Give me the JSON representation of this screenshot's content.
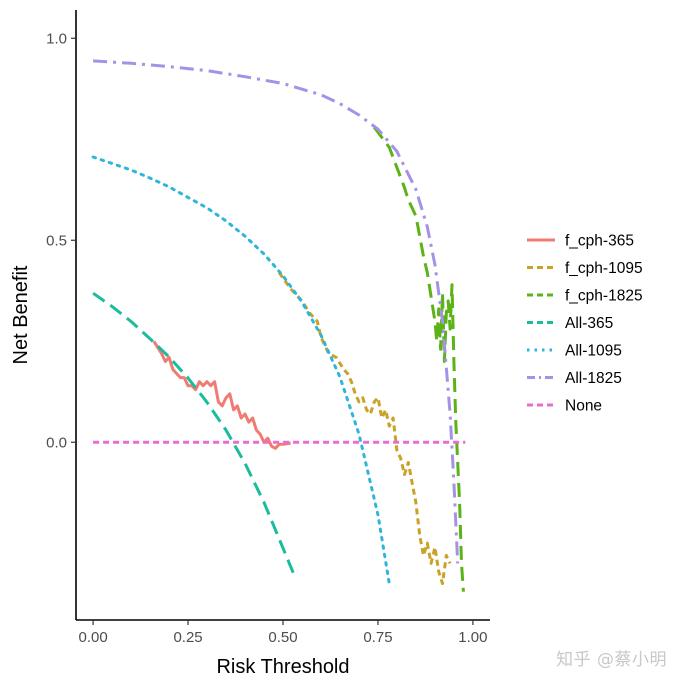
{
  "chart_data": {
    "type": "line",
    "title": "",
    "xlabel": "Risk Threshold",
    "ylabel": "Net Benefit",
    "xlim": [
      -0.045,
      1.045
    ],
    "ylim": [
      -0.44,
      1.07
    ],
    "xticks": [
      0.0,
      0.25,
      0.5,
      0.75,
      1.0
    ],
    "xtick_labels": [
      "0.00",
      "0.25",
      "0.50",
      "0.75",
      "1.00"
    ],
    "yticks": [
      0.0,
      0.5,
      1.0
    ],
    "ytick_labels": [
      "0.0",
      "0.5",
      "1.0"
    ],
    "grid": false,
    "legend_position": "right",
    "series": [
      {
        "name": "f_cph-365",
        "color": "#F07B72",
        "dash": "solid",
        "points": [
          [
            0.16,
            0.25
          ],
          [
            0.18,
            0.22
          ],
          [
            0.19,
            0.2
          ],
          [
            0.2,
            0.21
          ],
          [
            0.21,
            0.18
          ],
          [
            0.22,
            0.17
          ],
          [
            0.23,
            0.16
          ],
          [
            0.24,
            0.16
          ],
          [
            0.25,
            0.14
          ],
          [
            0.26,
            0.14
          ],
          [
            0.27,
            0.13
          ],
          [
            0.28,
            0.15
          ],
          [
            0.29,
            0.14
          ],
          [
            0.3,
            0.15
          ],
          [
            0.31,
            0.14
          ],
          [
            0.32,
            0.15
          ],
          [
            0.33,
            0.1
          ],
          [
            0.34,
            0.09
          ],
          [
            0.35,
            0.11
          ],
          [
            0.36,
            0.12
          ],
          [
            0.37,
            0.08
          ],
          [
            0.38,
            0.09
          ],
          [
            0.39,
            0.06
          ],
          [
            0.4,
            0.07
          ],
          [
            0.41,
            0.05
          ],
          [
            0.42,
            0.06
          ],
          [
            0.43,
            0.03
          ],
          [
            0.44,
            0.02
          ],
          [
            0.45,
            0.0
          ],
          [
            0.46,
            0.01
          ],
          [
            0.47,
            -0.01
          ],
          [
            0.48,
            -0.015
          ],
          [
            0.49,
            -0.005
          ],
          [
            0.5,
            -0.005
          ],
          [
            0.52,
            -0.002
          ]
        ]
      },
      {
        "name": "f_cph-1095",
        "color": "#C9A227",
        "dash": "dashed",
        "points": [
          [
            0.49,
            0.42
          ],
          [
            0.52,
            0.38
          ],
          [
            0.55,
            0.35
          ],
          [
            0.57,
            0.32
          ],
          [
            0.59,
            0.3
          ],
          [
            0.6,
            0.26
          ],
          [
            0.62,
            0.22
          ],
          [
            0.64,
            0.21
          ],
          [
            0.66,
            0.18
          ],
          [
            0.67,
            0.17
          ],
          [
            0.68,
            0.15
          ],
          [
            0.69,
            0.12
          ],
          [
            0.7,
            0.1
          ],
          [
            0.71,
            0.11
          ],
          [
            0.72,
            0.08
          ],
          [
            0.73,
            0.07
          ],
          [
            0.74,
            0.1
          ],
          [
            0.75,
            0.11
          ],
          [
            0.76,
            0.06
          ],
          [
            0.77,
            0.08
          ],
          [
            0.78,
            0.04
          ],
          [
            0.79,
            0.06
          ],
          [
            0.8,
            -0.02
          ],
          [
            0.81,
            -0.04
          ],
          [
            0.82,
            -0.08
          ],
          [
            0.83,
            -0.05
          ],
          [
            0.84,
            -0.1
          ],
          [
            0.85,
            -0.15
          ],
          [
            0.86,
            -0.23
          ],
          [
            0.87,
            -0.28
          ],
          [
            0.88,
            -0.25
          ],
          [
            0.89,
            -0.3
          ],
          [
            0.9,
            -0.26
          ],
          [
            0.91,
            -0.32
          ],
          [
            0.92,
            -0.35
          ],
          [
            0.93,
            -0.28
          ],
          [
            0.94,
            -0.3
          ]
        ]
      },
      {
        "name": "f_cph-1825",
        "color": "#5BB318",
        "dash": "longdash",
        "points": [
          [
            0.74,
            0.78
          ],
          [
            0.78,
            0.73
          ],
          [
            0.8,
            0.68
          ],
          [
            0.82,
            0.63
          ],
          [
            0.83,
            0.6
          ],
          [
            0.84,
            0.58
          ],
          [
            0.85,
            0.56
          ],
          [
            0.86,
            0.51
          ],
          [
            0.87,
            0.46
          ],
          [
            0.88,
            0.42
          ],
          [
            0.89,
            0.36
          ],
          [
            0.9,
            0.3
          ],
          [
            0.905,
            0.25
          ],
          [
            0.91,
            0.33
          ],
          [
            0.915,
            0.23
          ],
          [
            0.92,
            0.37
          ],
          [
            0.925,
            0.2
          ],
          [
            0.93,
            0.32
          ],
          [
            0.935,
            0.35
          ],
          [
            0.94,
            0.28
          ],
          [
            0.945,
            0.39
          ],
          [
            0.95,
            0.2
          ],
          [
            0.955,
            0.05
          ],
          [
            0.96,
            -0.05
          ],
          [
            0.965,
            -0.15
          ],
          [
            0.97,
            -0.3
          ],
          [
            0.975,
            -0.37
          ]
        ]
      },
      {
        "name": "All-365",
        "color": "#1ABC9C",
        "dash": "longdash",
        "points": [
          [
            0.0,
            0.369
          ],
          [
            0.05,
            0.336
          ],
          [
            0.1,
            0.299
          ],
          [
            0.15,
            0.256
          ],
          [
            0.2,
            0.211
          ],
          [
            0.25,
            0.159
          ],
          [
            0.3,
            0.099
          ],
          [
            0.35,
            0.03
          ],
          [
            0.4,
            -0.052
          ],
          [
            0.45,
            -0.149
          ],
          [
            0.5,
            -0.262
          ],
          [
            0.53,
            -0.33
          ]
        ]
      },
      {
        "name": "All-1095",
        "color": "#2DB5DC",
        "dash": "dotted",
        "points": [
          [
            0.0,
            0.706
          ],
          [
            0.05,
            0.69
          ],
          [
            0.1,
            0.674
          ],
          [
            0.15,
            0.654
          ],
          [
            0.2,
            0.632
          ],
          [
            0.25,
            0.606
          ],
          [
            0.3,
            0.58
          ],
          [
            0.35,
            0.548
          ],
          [
            0.4,
            0.51
          ],
          [
            0.45,
            0.466
          ],
          [
            0.5,
            0.412
          ],
          [
            0.55,
            0.347
          ],
          [
            0.6,
            0.265
          ],
          [
            0.65,
            0.161
          ],
          [
            0.7,
            0.02
          ],
          [
            0.75,
            -0.18
          ],
          [
            0.78,
            -0.35
          ]
        ]
      },
      {
        "name": "All-1825",
        "color": "#A592E6",
        "dash": "dashdot",
        "points": [
          [
            0.0,
            0.944
          ],
          [
            0.1,
            0.938
          ],
          [
            0.2,
            0.93
          ],
          [
            0.3,
            0.92
          ],
          [
            0.4,
            0.905
          ],
          [
            0.5,
            0.888
          ],
          [
            0.6,
            0.86
          ],
          [
            0.65,
            0.838
          ],
          [
            0.7,
            0.81
          ],
          [
            0.75,
            0.775
          ],
          [
            0.8,
            0.72
          ],
          [
            0.85,
            0.626
          ],
          [
            0.88,
            0.533
          ],
          [
            0.9,
            0.44
          ],
          [
            0.92,
            0.3
          ],
          [
            0.94,
            0.07
          ],
          [
            0.95,
            -0.1
          ],
          [
            0.96,
            -0.3
          ]
        ]
      },
      {
        "name": "None",
        "color": "#E86CD2",
        "dash": "dashed",
        "points": [
          [
            0.0,
            0.0
          ],
          [
            0.98,
            0.0
          ]
        ]
      }
    ]
  },
  "watermark": "知乎 @蔡小明"
}
